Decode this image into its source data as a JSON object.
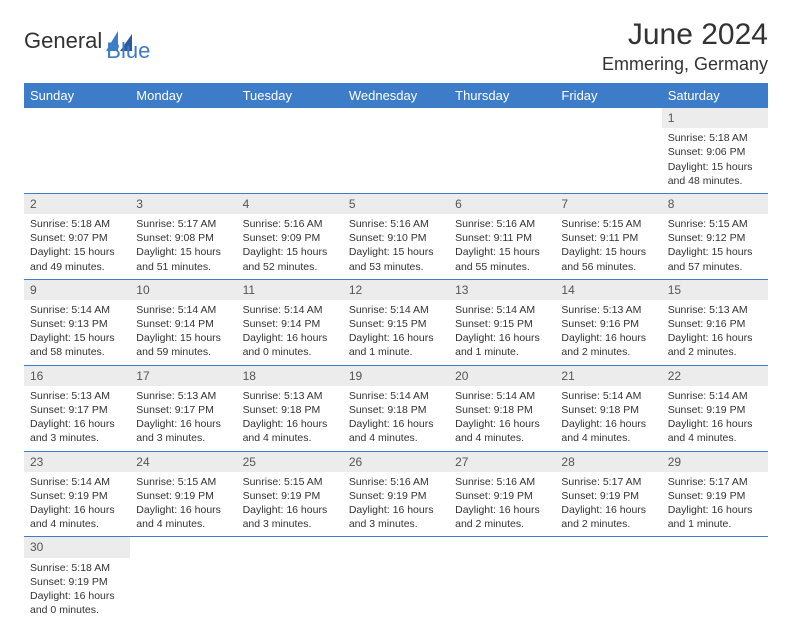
{
  "brand": {
    "name_a": "General",
    "name_b": "Blue",
    "accent_color": "#3d7cc9"
  },
  "title": "June 2024",
  "location": "Emmering, Germany",
  "weekdays": [
    "Sunday",
    "Monday",
    "Tuesday",
    "Wednesday",
    "Thursday",
    "Friday",
    "Saturday"
  ],
  "colors": {
    "header_bg": "#3d7cc9",
    "header_fg": "#ffffff",
    "daynum_bg": "#ececec",
    "text": "#333333",
    "rule": "#3d7cc9"
  },
  "weeks": [
    {
      "nums": [
        "",
        "",
        "",
        "",
        "",
        "",
        "1"
      ],
      "info": [
        "",
        "",
        "",
        "",
        "",
        "",
        "Sunrise: 5:18 AM\nSunset: 9:06 PM\nDaylight: 15 hours and 48 minutes."
      ]
    },
    {
      "nums": [
        "2",
        "3",
        "4",
        "5",
        "6",
        "7",
        "8"
      ],
      "info": [
        "Sunrise: 5:18 AM\nSunset: 9:07 PM\nDaylight: 15 hours and 49 minutes.",
        "Sunrise: 5:17 AM\nSunset: 9:08 PM\nDaylight: 15 hours and 51 minutes.",
        "Sunrise: 5:16 AM\nSunset: 9:09 PM\nDaylight: 15 hours and 52 minutes.",
        "Sunrise: 5:16 AM\nSunset: 9:10 PM\nDaylight: 15 hours and 53 minutes.",
        "Sunrise: 5:16 AM\nSunset: 9:11 PM\nDaylight: 15 hours and 55 minutes.",
        "Sunrise: 5:15 AM\nSunset: 9:11 PM\nDaylight: 15 hours and 56 minutes.",
        "Sunrise: 5:15 AM\nSunset: 9:12 PM\nDaylight: 15 hours and 57 minutes."
      ]
    },
    {
      "nums": [
        "9",
        "10",
        "11",
        "12",
        "13",
        "14",
        "15"
      ],
      "info": [
        "Sunrise: 5:14 AM\nSunset: 9:13 PM\nDaylight: 15 hours and 58 minutes.",
        "Sunrise: 5:14 AM\nSunset: 9:14 PM\nDaylight: 15 hours and 59 minutes.",
        "Sunrise: 5:14 AM\nSunset: 9:14 PM\nDaylight: 16 hours and 0 minutes.",
        "Sunrise: 5:14 AM\nSunset: 9:15 PM\nDaylight: 16 hours and 1 minute.",
        "Sunrise: 5:14 AM\nSunset: 9:15 PM\nDaylight: 16 hours and 1 minute.",
        "Sunrise: 5:13 AM\nSunset: 9:16 PM\nDaylight: 16 hours and 2 minutes.",
        "Sunrise: 5:13 AM\nSunset: 9:16 PM\nDaylight: 16 hours and 2 minutes."
      ]
    },
    {
      "nums": [
        "16",
        "17",
        "18",
        "19",
        "20",
        "21",
        "22"
      ],
      "info": [
        "Sunrise: 5:13 AM\nSunset: 9:17 PM\nDaylight: 16 hours and 3 minutes.",
        "Sunrise: 5:13 AM\nSunset: 9:17 PM\nDaylight: 16 hours and 3 minutes.",
        "Sunrise: 5:13 AM\nSunset: 9:18 PM\nDaylight: 16 hours and 4 minutes.",
        "Sunrise: 5:14 AM\nSunset: 9:18 PM\nDaylight: 16 hours and 4 minutes.",
        "Sunrise: 5:14 AM\nSunset: 9:18 PM\nDaylight: 16 hours and 4 minutes.",
        "Sunrise: 5:14 AM\nSunset: 9:18 PM\nDaylight: 16 hours and 4 minutes.",
        "Sunrise: 5:14 AM\nSunset: 9:19 PM\nDaylight: 16 hours and 4 minutes."
      ]
    },
    {
      "nums": [
        "23",
        "24",
        "25",
        "26",
        "27",
        "28",
        "29"
      ],
      "info": [
        "Sunrise: 5:14 AM\nSunset: 9:19 PM\nDaylight: 16 hours and 4 minutes.",
        "Sunrise: 5:15 AM\nSunset: 9:19 PM\nDaylight: 16 hours and 4 minutes.",
        "Sunrise: 5:15 AM\nSunset: 9:19 PM\nDaylight: 16 hours and 3 minutes.",
        "Sunrise: 5:16 AM\nSunset: 9:19 PM\nDaylight: 16 hours and 3 minutes.",
        "Sunrise: 5:16 AM\nSunset: 9:19 PM\nDaylight: 16 hours and 2 minutes.",
        "Sunrise: 5:17 AM\nSunset: 9:19 PM\nDaylight: 16 hours and 2 minutes.",
        "Sunrise: 5:17 AM\nSunset: 9:19 PM\nDaylight: 16 hours and 1 minute."
      ]
    },
    {
      "nums": [
        "30",
        "",
        "",
        "",
        "",
        "",
        ""
      ],
      "info": [
        "Sunrise: 5:18 AM\nSunset: 9:19 PM\nDaylight: 16 hours and 0 minutes.",
        "",
        "",
        "",
        "",
        "",
        ""
      ]
    }
  ]
}
